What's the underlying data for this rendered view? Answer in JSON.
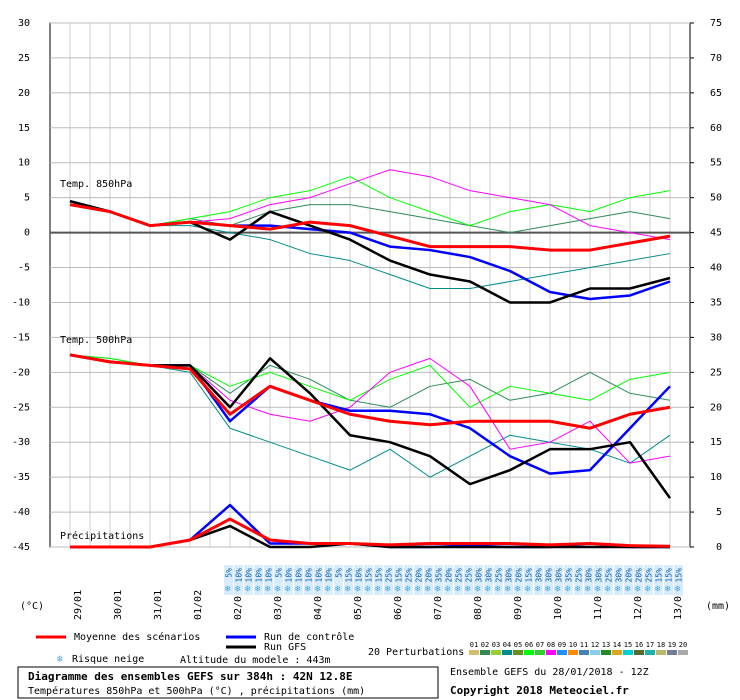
{
  "chart_data": {
    "type": "line",
    "panel_labels": [
      "Temp. 850hPa",
      "Temp. 500hPa",
      "Précipitations"
    ],
    "categories": [
      "29/01",
      "30/01",
      "31/01",
      "01/02",
      "02/02",
      "03/02",
      "04/02",
      "05/02",
      "06/02",
      "07/02",
      "08/02",
      "09/02",
      "10/02",
      "11/02",
      "12/02",
      "13/02"
    ],
    "ylim": [
      -45,
      30
    ],
    "yticks": [
      -45,
      -40,
      -35,
      -30,
      -25,
      -20,
      -15,
      -10,
      -5,
      0,
      5,
      10,
      15,
      20,
      25,
      30
    ],
    "y2lim": [
      0,
      75
    ],
    "y2ticks": [
      0,
      5,
      10,
      15,
      20,
      25,
      30,
      35,
      40,
      45,
      50,
      55,
      60,
      65,
      70,
      75
    ],
    "ylabel": "(°C)",
    "y2label": "(mm)",
    "grid": true,
    "series": [
      {
        "name": "Moyenne des scénarios",
        "color": "#ff0000",
        "t850": [
          4,
          3,
          1,
          1.5,
          1,
          0.5,
          1.5,
          1,
          -0.5,
          -2,
          -2,
          -2,
          -2.5,
          -2.5,
          -1.5,
          -0.5
        ],
        "t500": [
          -17.5,
          -18.5,
          -19,
          -19.5,
          -26,
          -22,
          -24,
          -26,
          -27,
          -27.5,
          -27,
          -27,
          -27,
          -28,
          -26,
          -25
        ],
        "precip": [
          0,
          0,
          0,
          1,
          4,
          1,
          0.5,
          0.5,
          0.3,
          0.5,
          0.5,
          0.5,
          0.3,
          0.5,
          0.2,
          0.1
        ]
      },
      {
        "name": "Run de contrôle",
        "color": "#0000ff",
        "t850": [
          4.5,
          3,
          1,
          1.5,
          1,
          1,
          0.5,
          0,
          -2,
          -2.5,
          -3.5,
          -5.5,
          -8.5,
          -9.5,
          -9,
          -7
        ],
        "t500": [
          -17.5,
          -18.5,
          -19,
          -19,
          -27,
          -22,
          -24,
          -25.5,
          -25.5,
          -26,
          -28,
          -32,
          -34.5,
          -34,
          -28,
          -22
        ],
        "precip": [
          0,
          0,
          0,
          1,
          6,
          0.5,
          0.5,
          0.5,
          0,
          0,
          0.2,
          0,
          0,
          0.5,
          0,
          0
        ]
      },
      {
        "name": "Run GFS",
        "color": "#000000",
        "t850": [
          4.5,
          3,
          1,
          1.5,
          -1,
          3,
          1,
          -1,
          -4,
          -6,
          -7,
          -10,
          -10,
          -8,
          -8,
          -6.5
        ],
        "t500": [
          -17.5,
          -18.5,
          -19,
          -19,
          -25,
          -18,
          -23,
          -29,
          -30,
          -32,
          -36,
          -34,
          -31,
          -31,
          -30,
          -38
        ],
        "precip": [
          0,
          0,
          0,
          1,
          3,
          0,
          0,
          0.5,
          0,
          0,
          0,
          0,
          0,
          0,
          0,
          0
        ]
      }
    ],
    "perturbations_label": "20 Perturbations",
    "perturbations": [
      {
        "name": "01",
        "color": "#d4bd6b"
      },
      {
        "name": "02",
        "color": "#2e8b57",
        "t850": [
          4,
          3,
          1,
          2,
          1,
          3,
          4,
          4,
          3,
          2,
          1,
          0,
          1,
          2,
          3,
          2
        ],
        "t500": [
          -17.5,
          -18,
          -19,
          -19,
          -23,
          -19,
          -21,
          -24,
          -25,
          -22,
          -21,
          -24,
          -23,
          -20,
          -23,
          -24
        ]
      },
      {
        "name": "03",
        "color": "#9acd32"
      },
      {
        "name": "04",
        "color": "#008b8b",
        "t850": [
          4,
          3,
          1,
          1,
          0,
          -1,
          -3,
          -4,
          -6,
          -8,
          -8,
          -7,
          -6,
          -5,
          -4,
          -3
        ],
        "t500": [
          -17.5,
          -18.5,
          -19,
          -20,
          -28,
          -30,
          -32,
          -34,
          -31,
          -35,
          -32,
          -29,
          -30,
          -31,
          -33,
          -29
        ]
      },
      {
        "name": "05",
        "color": "#6b8e23"
      },
      {
        "name": "06",
        "color": "#00ff00",
        "t850": [
          4.5,
          3,
          1,
          2,
          3,
          5,
          6,
          8,
          5,
          3,
          1,
          3,
          4,
          3,
          5,
          6
        ],
        "t500": [
          -17.5,
          -18,
          -19,
          -19,
          -22,
          -20,
          -22,
          -24,
          -21,
          -19,
          -25,
          -22,
          -23,
          -24,
          -21,
          -20
        ]
      },
      {
        "name": "07",
        "color": "#32cd32"
      },
      {
        "name": "08",
        "color": "#ff00ff",
        "t850": [
          4,
          3,
          1,
          1.5,
          2,
          4,
          5,
          7,
          9,
          8,
          6,
          5,
          4,
          1,
          0,
          -1
        ],
        "t500": [
          -17.5,
          -18.5,
          -19,
          -19,
          -24,
          -26,
          -27,
          -25,
          -20,
          -18,
          -22,
          -31,
          -30,
          -27,
          -33,
          -32
        ]
      },
      {
        "name": "09",
        "color": "#1e90ff"
      },
      {
        "name": "10",
        "color": "#ff8c00"
      },
      {
        "name": "11",
        "color": "#4682b4"
      },
      {
        "name": "12",
        "color": "#87ceeb"
      },
      {
        "name": "13",
        "color": "#228b22"
      },
      {
        "name": "14",
        "color": "#daa520"
      },
      {
        "name": "15",
        "color": "#00ced1"
      },
      {
        "name": "16",
        "color": "#556b2f"
      },
      {
        "name": "17",
        "color": "#20b2aa"
      },
      {
        "name": "18",
        "color": "#bdb76b"
      },
      {
        "name": "19",
        "color": "#708090"
      },
      {
        "name": "20",
        "color": "#a9a9a9"
      }
    ],
    "snow_risk": [
      "5%",
      "10%",
      "10%",
      "10%",
      "10%",
      "5%",
      "10%",
      "10%",
      "10%",
      "10%",
      "10%",
      "5%",
      "15%",
      "10%",
      "15%",
      "15%",
      "25%",
      "15%",
      "25%",
      "20%",
      "20%",
      "35%",
      "20%",
      "25%",
      "25%",
      "30%",
      "30%",
      "25%",
      "30%",
      "20%",
      "15%",
      "30%",
      "30%",
      "30%",
      "35%",
      "25%",
      "30%",
      "30%",
      "25%",
      "30%",
      "20%",
      "20%",
      "25%",
      "15%",
      "15%",
      "15%"
    ],
    "snow_label": "Risque neige",
    "altitude": "Altitude du modele : 443m",
    "run_info": "Ensemble GEFS du 28/01/2018 - 12Z",
    "title": "Diagramme des ensembles GEFS sur 384h : 42N 12.8E",
    "subtitle": "Températures 850hPa et 500hPa (°C) , précipitations (mm)",
    "copyright": "Copyright 2018 Meteociel.fr"
  }
}
